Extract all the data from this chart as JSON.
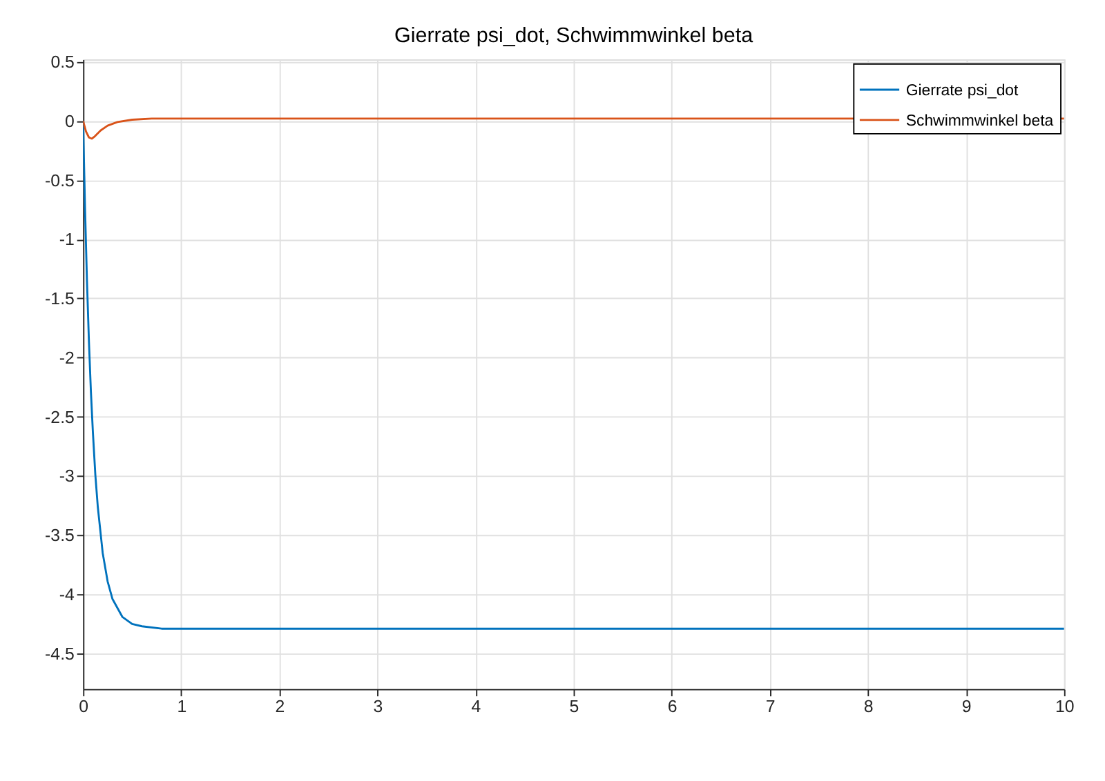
{
  "chart_data": {
    "type": "line",
    "title": "Gierrate psi_dot, Schwimmwinkel beta",
    "xlim": [
      0,
      10
    ],
    "xticks": [
      0,
      1,
      2,
      3,
      4,
      5,
      6,
      7,
      8,
      9,
      10
    ],
    "ylim": [
      -4.8,
      0.52
    ],
    "yticks": [
      -4.5,
      -4,
      -3.5,
      -3,
      -2.5,
      -2,
      -1.5,
      -1,
      -0.5,
      0,
      0.5
    ],
    "grid": true,
    "legend": "top right",
    "line_style": "solid",
    "marker": "none",
    "series": [
      {
        "name": "Gierrate psi_dot",
        "color": "#0072bd",
        "x": [
          0,
          0.02,
          0.04,
          0.06,
          0.08,
          0.1,
          0.125,
          0.15,
          0.2,
          0.25,
          0.3,
          0.4,
          0.5,
          0.6,
          0.8,
          1,
          10
        ],
        "values": [
          0,
          -0.74,
          -1.36,
          -1.87,
          -2.29,
          -2.63,
          -2.99,
          -3.26,
          -3.65,
          -3.89,
          -4.04,
          -4.19,
          -4.25,
          -4.27,
          -4.29,
          -4.29,
          -4.29
        ]
      },
      {
        "name": "Schwimmwinkel beta",
        "color": "#d95319",
        "x": [
          0,
          0.03,
          0.06,
          0.09,
          0.12,
          0.18,
          0.25,
          0.35,
          0.5,
          0.7,
          10
        ],
        "values": [
          0,
          -0.09,
          -0.14,
          -0.15,
          -0.13,
          -0.08,
          -0.04,
          -0.01,
          0.01,
          0.02,
          0.02
        ]
      }
    ]
  }
}
